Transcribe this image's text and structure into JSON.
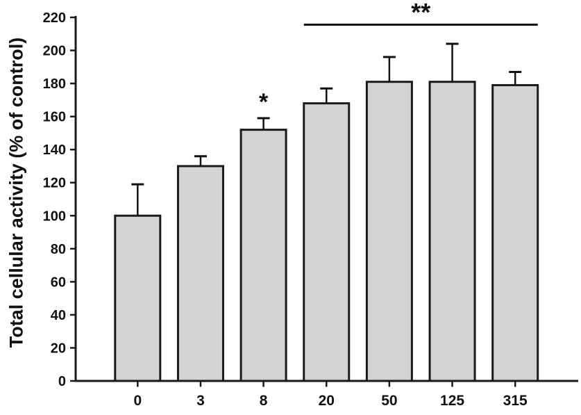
{
  "chart_data": {
    "type": "bar",
    "title": "",
    "xlabel": "",
    "ylabel": "Total cellular activity (% of control)",
    "categories": [
      "0",
      "3",
      "8",
      "20",
      "50",
      "125",
      "315"
    ],
    "values": [
      100,
      130,
      152,
      168,
      181,
      181,
      179
    ],
    "errors": [
      19,
      6,
      7,
      9,
      15,
      23,
      8
    ],
    "ylim": [
      0,
      220
    ],
    "ytick_step": 20,
    "yticks": [
      0,
      20,
      40,
      60,
      80,
      100,
      120,
      140,
      160,
      180,
      200,
      220
    ],
    "grid": "off",
    "legend": "none",
    "annotations": [
      {
        "type": "star",
        "text": "*",
        "bar_index": 2
      },
      {
        "type": "bracket",
        "text": "**",
        "from_index": 3,
        "to_index": 6
      }
    ],
    "colors": {
      "bar_fill": "#d3d3d3",
      "bar_stroke": "#1a1a1a",
      "axis": "#1a1a1a",
      "error_bar": "#111111",
      "annotation": "#111111",
      "background": "#ffffff"
    }
  }
}
